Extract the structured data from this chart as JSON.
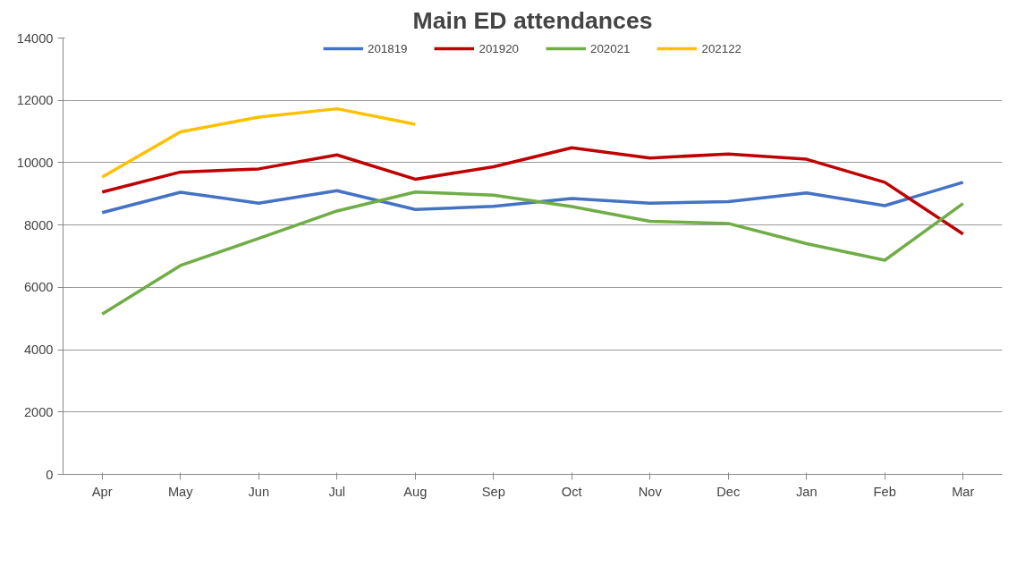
{
  "chart_data": {
    "type": "line",
    "title": "Main ED attendances",
    "categories": [
      "Apr",
      "May",
      "Jun",
      "Jul",
      "Aug",
      "Sep",
      "Oct",
      "Nov",
      "Dec",
      "Jan",
      "Feb",
      "Mar"
    ],
    "series": [
      {
        "name": "201819",
        "color": "#4472c4",
        "values": [
          8400,
          9050,
          8700,
          9100,
          8500,
          8600,
          8850,
          8700,
          8750,
          9030,
          8620,
          9370
        ]
      },
      {
        "name": "201920",
        "color": "#c00000",
        "values": [
          9060,
          9700,
          9800,
          10250,
          9470,
          9870,
          10480,
          10150,
          10280,
          10110,
          9370,
          7710
        ]
      },
      {
        "name": "202021",
        "color": "#70ad47",
        "values": [
          5140,
          6700,
          7570,
          8450,
          9060,
          8960,
          8590,
          8120,
          8050,
          7400,
          6870,
          8690
        ]
      },
      {
        "name": "202122",
        "color": "#ffc000",
        "values": [
          9540,
          10990,
          11460,
          11730,
          11230,
          null,
          null,
          null,
          null,
          null,
          null,
          null
        ]
      }
    ],
    "ylim": [
      0,
      14000
    ],
    "yticks": [
      0,
      2000,
      4000,
      6000,
      8000,
      10000,
      12000,
      14000
    ],
    "grid": "y",
    "legend": "top",
    "marker": "none",
    "line_style": "solid"
  }
}
